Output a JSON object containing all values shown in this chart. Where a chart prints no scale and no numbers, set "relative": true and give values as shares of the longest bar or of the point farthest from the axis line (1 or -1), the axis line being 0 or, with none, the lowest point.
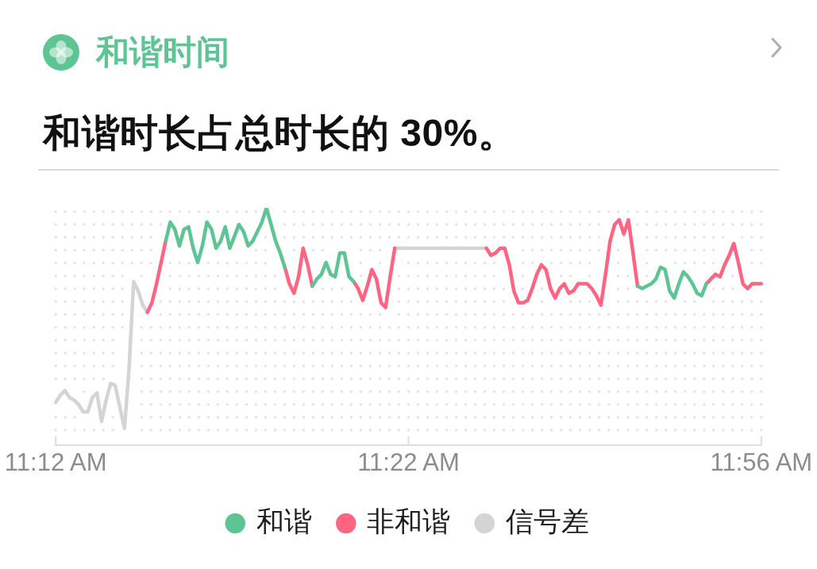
{
  "chart_data": {
    "type": "line",
    "title": "和谐时间",
    "subtitle": "和谐时长占总时长的 30%。",
    "relative": true,
    "legend": "bottom",
    "categories": [
      "11:12 AM",
      null,
      null,
      null,
      null,
      null,
      null,
      null,
      null,
      null,
      null,
      null,
      null,
      null,
      null,
      null,
      null,
      null,
      null,
      null,
      null,
      null,
      null,
      null,
      null,
      null,
      null,
      null,
      null,
      null,
      null,
      null,
      null,
      null,
      null,
      null,
      null,
      null,
      null,
      null,
      null,
      null,
      null,
      null,
      null,
      null,
      null,
      null,
      null,
      null,
      null,
      null,
      null,
      null,
      null,
      null,
      null,
      null,
      null,
      null,
      null,
      null,
      null,
      null,
      null,
      null,
      null,
      null,
      null,
      null,
      null,
      null,
      null,
      null,
      null,
      null,
      null,
      "11:22 AM",
      null,
      null,
      null,
      null,
      null,
      null,
      null,
      null,
      null,
      null,
      null,
      null,
      null,
      null,
      null,
      null,
      null,
      null,
      null,
      null,
      null,
      null,
      null,
      null,
      null,
      null,
      null,
      null,
      null,
      null,
      null,
      null,
      null,
      null,
      null,
      null,
      null,
      null,
      null,
      null,
      null,
      null,
      null,
      null,
      null,
      null,
      null,
      null,
      null,
      null,
      null,
      null,
      null,
      null,
      null,
      null,
      null,
      null,
      null,
      null,
      null,
      null,
      null,
      null,
      null,
      null,
      null,
      null,
      null,
      null,
      null,
      null,
      null,
      null,
      null,
      null,
      "11:56 AM"
    ],
    "series": [
      {
        "name": "和谐",
        "color": "#5dc593",
        "values": [
          null,
          null,
          null,
          null,
          null,
          null,
          null,
          null,
          null,
          null,
          null,
          null,
          null,
          null,
          null,
          null,
          null,
          null,
          null,
          null,
          null,
          null,
          null,
          null,
          0.86,
          0.94,
          0.91,
          0.84,
          0.91,
          0.92,
          0.83,
          0.77,
          0.84,
          0.94,
          0.91,
          0.83,
          0.86,
          0.92,
          0.83,
          0.88,
          0.93,
          0.9,
          0.84,
          0.86,
          0.9,
          0.94,
          1,
          0.93,
          0.86,
          0.81,
          0.75,
          null,
          null,
          null,
          null,
          null,
          0.67,
          0.7,
          0.72,
          0.77,
          0.72,
          0.71,
          0.81,
          0.81,
          0.71,
          0.69,
          null,
          null,
          null,
          null,
          null,
          null,
          null,
          null,
          null,
          null,
          null,
          null,
          null,
          null,
          null,
          null,
          null,
          null,
          null,
          null,
          null,
          null,
          null,
          null,
          null,
          null,
          null,
          null,
          null,
          null,
          null,
          null,
          null,
          null,
          null,
          null,
          null,
          null,
          null,
          null,
          null,
          null,
          null,
          null,
          null,
          null,
          null,
          null,
          null,
          null,
          null,
          null,
          null,
          null,
          null,
          null,
          null,
          null,
          null,
          null,
          null,
          0.67,
          0.66,
          0.67,
          0.68,
          0.7,
          0.75,
          0.74,
          0.65,
          0.62,
          0.68,
          0.73,
          0.71,
          0.68,
          0.64,
          0.63,
          0.68,
          null,
          null,
          null,
          null,
          null,
          null,
          null,
          null,
          null,
          null,
          null,
          null
        ]
      },
      {
        "name": "非和谐",
        "color": "#ff6482",
        "values": [
          null,
          null,
          null,
          null,
          null,
          null,
          null,
          null,
          null,
          null,
          null,
          null,
          null,
          null,
          null,
          null,
          null,
          null,
          null,
          null,
          0.56,
          0.6,
          0.68,
          0.77,
          0.86,
          null,
          null,
          null,
          null,
          null,
          null,
          null,
          null,
          null,
          null,
          null,
          null,
          null,
          null,
          null,
          null,
          null,
          null,
          null,
          null,
          null,
          null,
          null,
          null,
          null,
          0.75,
          0.68,
          0.64,
          0.71,
          0.83,
          0.76,
          0.67,
          null,
          null,
          null,
          null,
          null,
          null,
          null,
          null,
          0.69,
          0.66,
          0.61,
          0.67,
          0.74,
          0.7,
          0.6,
          0.58,
          0.71,
          0.83,
          null,
          null,
          null,
          null,
          null,
          null,
          null,
          null,
          null,
          null,
          null,
          null,
          null,
          null,
          null,
          null,
          null,
          null,
          null,
          0.83,
          0.8,
          0.81,
          0.83,
          0.83,
          0.76,
          0.65,
          0.6,
          0.6,
          0.61,
          0.66,
          0.72,
          0.76,
          0.74,
          0.66,
          0.62,
          0.66,
          0.68,
          0.64,
          0.65,
          0.68,
          0.68,
          0.68,
          0.66,
          0.63,
          0.59,
          0.72,
          0.86,
          0.93,
          0.95,
          0.89,
          0.95,
          0.81,
          0.67,
          null,
          null,
          null,
          null,
          null,
          null,
          null,
          null,
          null,
          null,
          null,
          null,
          null,
          null,
          0.68,
          0.7,
          0.72,
          0.71,
          0.76,
          0.8,
          0.85,
          0.77,
          0.68,
          0.66,
          0.68,
          0.68,
          0.68
        ]
      },
      {
        "name": "信号差",
        "color": "#d4d4d4",
        "values": [
          0.18,
          0.21,
          0.23,
          0.2,
          0.19,
          0.17,
          0.14,
          0.14,
          0.2,
          0.22,
          0.1,
          0.19,
          0.26,
          0.25,
          0.16,
          0.07,
          0.32,
          0.69,
          0.65,
          0.59,
          0.56,
          null,
          null,
          null,
          null,
          null,
          null,
          null,
          null,
          null,
          null,
          null,
          null,
          null,
          null,
          null,
          null,
          null,
          null,
          null,
          null,
          null,
          null,
          null,
          null,
          null,
          null,
          null,
          null,
          null,
          null,
          null,
          null,
          null,
          null,
          null,
          null,
          null,
          null,
          null,
          null,
          null,
          null,
          null,
          null,
          null,
          null,
          null,
          null,
          null,
          null,
          null,
          null,
          null,
          0.83,
          0.83,
          0.83,
          0.83,
          0.83,
          0.83,
          0.83,
          0.83,
          0.83,
          0.83,
          0.83,
          0.83,
          0.83,
          0.83,
          0.83,
          0.83,
          0.83,
          0.83,
          0.83,
          0.83,
          0.83,
          null,
          null,
          null,
          null,
          null,
          null,
          null,
          null,
          null,
          null,
          null,
          null,
          null,
          null,
          null,
          null,
          null,
          null,
          null,
          null,
          null,
          null,
          null,
          null,
          null,
          null,
          null,
          null,
          null,
          null,
          null,
          null,
          null,
          null,
          null,
          null,
          null,
          null,
          null,
          null,
          null,
          null,
          null,
          null,
          null,
          null,
          null,
          null,
          null,
          null,
          null,
          null,
          null,
          null,
          null,
          null,
          null,
          null,
          null,
          null
        ]
      }
    ]
  }
}
